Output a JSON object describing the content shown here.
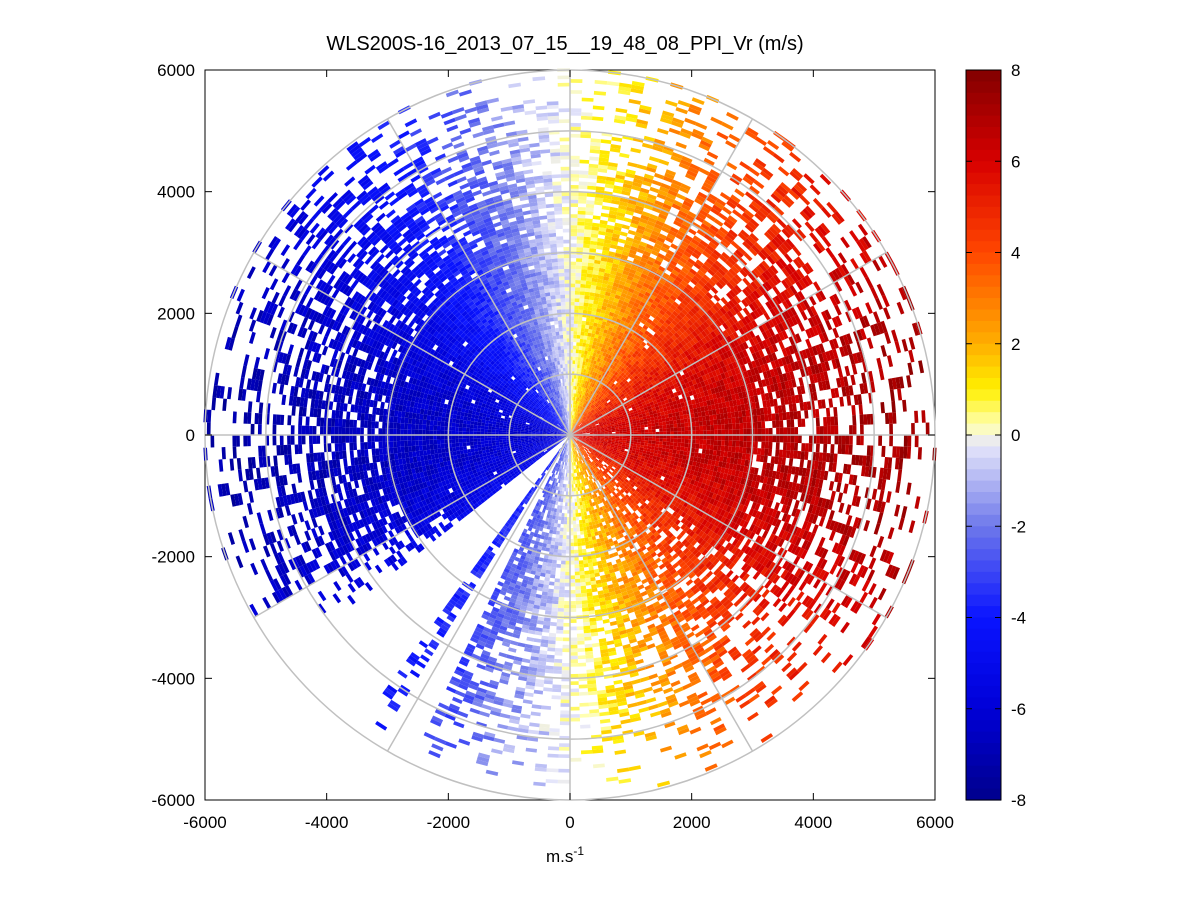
{
  "chart_data": {
    "type": "heatmap",
    "subtype": "polar-ppi-radial-velocity",
    "title": "WLS200S-16_2013_07_15__19_48_08_PPI_Vr (m/s)",
    "xlabel_base": "m.s",
    "xlabel_sup": "-1",
    "ylabel": "",
    "xlim": [
      -6000,
      6000
    ],
    "ylim": [
      -6000,
      6000
    ],
    "x_ticks": [
      -6000,
      -4000,
      -2000,
      0,
      2000,
      4000,
      6000
    ],
    "y_ticks": [
      -6000,
      -4000,
      -2000,
      0,
      2000,
      4000,
      6000
    ],
    "x_tick_labels": [
      "-6000",
      "-4000",
      "-2000",
      "0",
      "2000",
      "4000",
      "6000"
    ],
    "y_tick_labels": [
      "-6000",
      "-4000",
      "-2000",
      "0",
      "2000",
      "4000",
      "6000"
    ],
    "polar_grid": {
      "range_rings_m": [
        1000,
        2000,
        3000,
        4000,
        5000,
        6000
      ],
      "spoke_angles_deg": [
        0,
        30,
        60,
        90,
        120,
        150,
        180,
        210,
        240,
        270,
        300,
        330
      ]
    },
    "colorbar": {
      "min": -8,
      "max": 8,
      "ticks": [
        8,
        6,
        4,
        2,
        0,
        -2,
        -4,
        -6,
        -8
      ],
      "tick_labels": [
        "8",
        "6",
        "4",
        "2",
        "0",
        "-2",
        "-4",
        "-6",
        "-8"
      ],
      "colormap": "blue-white-yellow-red"
    },
    "field_summary": {
      "description": "Radial velocity; negative (blue, approaching) on west half, positive (red, receding) on east half, max magnitude near 7-8 m/s",
      "west_sector_velocity": -7,
      "east_sector_velocity": 7,
      "max_range_m": 6000
    }
  },
  "colors": {
    "axis": "#000000",
    "grid": "#c0c0c0",
    "background": "#ffffff"
  }
}
